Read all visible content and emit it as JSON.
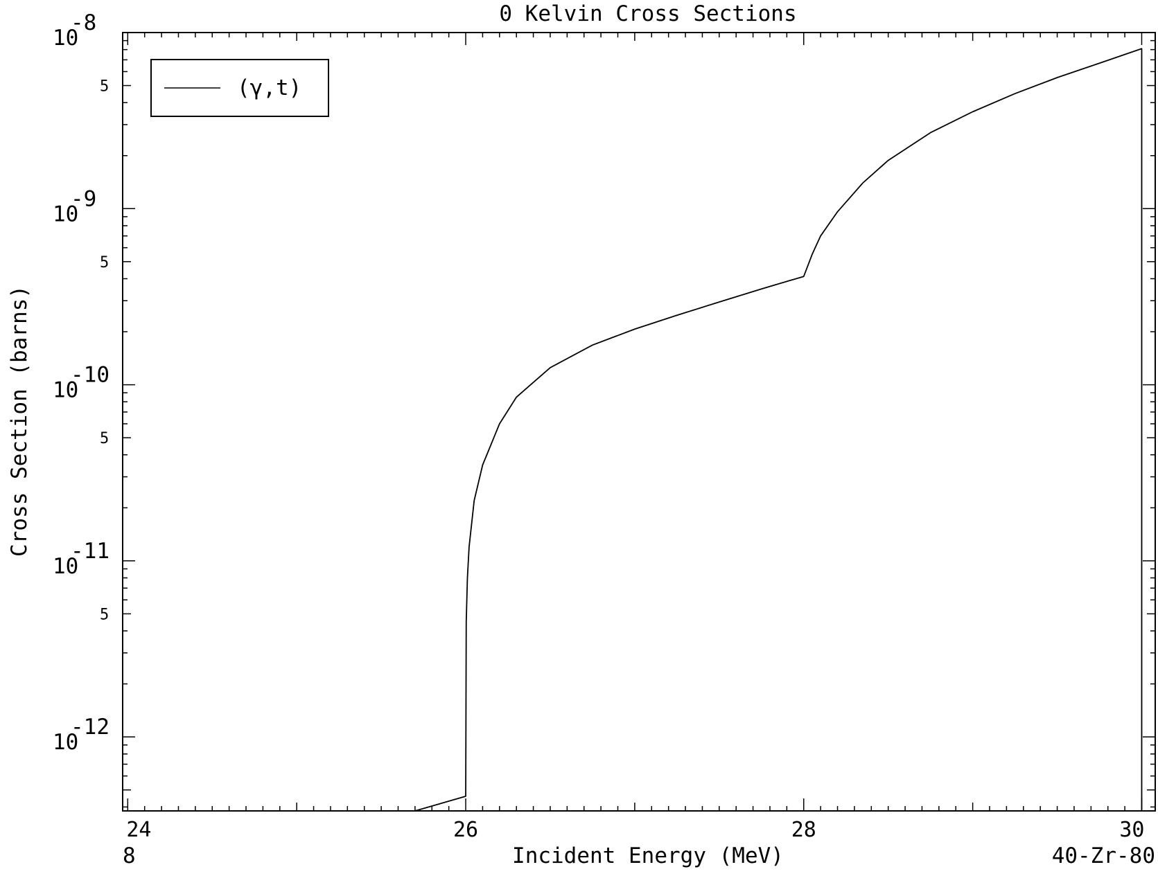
{
  "chart_data": {
    "type": "line",
    "title": "0 Kelvin Cross Sections",
    "xlabel": "Incident Energy (MeV)",
    "ylabel": "Cross Section (barns)",
    "footer_left": "8",
    "footer_right": "40-Zr-80",
    "xlim": [
      23.97,
      30.08
    ],
    "ylim": [
      3.8e-13,
      1e-08
    ],
    "yscale": "log",
    "grid": false,
    "legend_position": "top-left",
    "x_ticks": [
      {
        "value": 24,
        "label": "24"
      },
      {
        "value": 26,
        "label": "26"
      },
      {
        "value": 28,
        "label": "28"
      },
      {
        "value": 30,
        "label": "30"
      }
    ],
    "y_decade_ticks": [
      {
        "value": 1e-08,
        "base": "10",
        "exponent": "-8"
      },
      {
        "value": 1e-09,
        "base": "10",
        "exponent": "-9"
      },
      {
        "value": 1e-10,
        "base": "10",
        "exponent": "-10"
      },
      {
        "value": 1e-11,
        "base": "10",
        "exponent": "-11"
      },
      {
        "value": 1e-12,
        "base": "10",
        "exponent": "-12"
      }
    ],
    "y_five_ticks": [
      {
        "value": 5e-09,
        "label": "5"
      },
      {
        "value": 5e-10,
        "label": "5"
      },
      {
        "value": 5e-11,
        "label": "5"
      },
      {
        "value": 5e-12,
        "label": "5"
      }
    ],
    "series": [
      {
        "name": "(γ,t)",
        "color": "#000000",
        "points": [
          [
            25.7,
            3.8e-13
          ],
          [
            26.0,
            4.6e-13
          ],
          [
            26.003,
            4.5e-12
          ],
          [
            26.01,
            8e-12
          ],
          [
            26.02,
            1.2e-11
          ],
          [
            26.05,
            2.2e-11
          ],
          [
            26.1,
            3.5e-11
          ],
          [
            26.2,
            6e-11
          ],
          [
            26.3,
            8.5e-11
          ],
          [
            26.5,
            1.25e-10
          ],
          [
            26.75,
            1.68e-10
          ],
          [
            27.0,
            2.07e-10
          ],
          [
            27.25,
            2.48e-10
          ],
          [
            27.5,
            2.95e-10
          ],
          [
            27.75,
            3.5e-10
          ],
          [
            28.0,
            4.12e-10
          ],
          [
            28.05,
            5.5e-10
          ],
          [
            28.1,
            7e-10
          ],
          [
            28.2,
            9.6e-10
          ],
          [
            28.35,
            1.4e-09
          ],
          [
            28.5,
            1.88e-09
          ],
          [
            28.75,
            2.7e-09
          ],
          [
            29.0,
            3.55e-09
          ],
          [
            29.25,
            4.5e-09
          ],
          [
            29.5,
            5.55e-09
          ],
          [
            29.75,
            6.7e-09
          ],
          [
            30.0,
            8.1e-09
          ],
          [
            30.0,
            3.8e-13
          ]
        ]
      }
    ]
  }
}
